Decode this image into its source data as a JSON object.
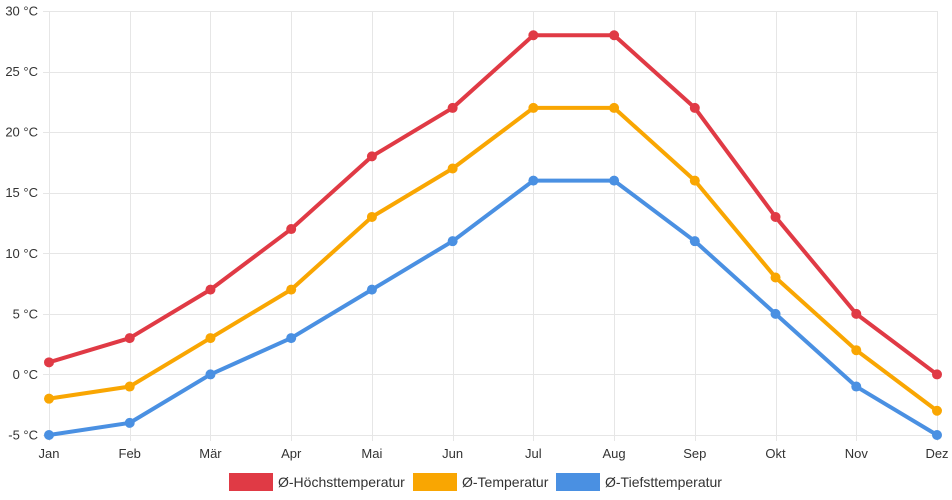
{
  "chart_data": {
    "type": "line",
    "title": "",
    "xlabel": "",
    "ylabel": "",
    "categories": [
      "Jan",
      "Feb",
      "Mär",
      "Apr",
      "Mai",
      "Jun",
      "Jul",
      "Aug",
      "Sep",
      "Okt",
      "Nov",
      "Dez"
    ],
    "ylim": [
      -5,
      30
    ],
    "yticks": [
      -5,
      0,
      5,
      10,
      15,
      20,
      25,
      30
    ],
    "y_unit": "°C",
    "grid": true,
    "legend_position": "bottom",
    "series": [
      {
        "name": "Ø-Höchsttemperatur",
        "color": "#e03a45",
        "values": [
          1,
          3,
          7,
          12,
          18,
          22,
          28,
          28,
          22,
          13,
          5,
          0
        ]
      },
      {
        "name": "Ø-Temperatur",
        "color": "#f9a602",
        "values": [
          -2,
          -1,
          3,
          7,
          13,
          17,
          22,
          22,
          16,
          8,
          2,
          -3
        ]
      },
      {
        "name": "Ø-Tiefsttemperatur",
        "color": "#4a90e2",
        "values": [
          -5,
          -4,
          0,
          3,
          7,
          11,
          16,
          16,
          11,
          5,
          -1,
          -5
        ]
      }
    ]
  }
}
